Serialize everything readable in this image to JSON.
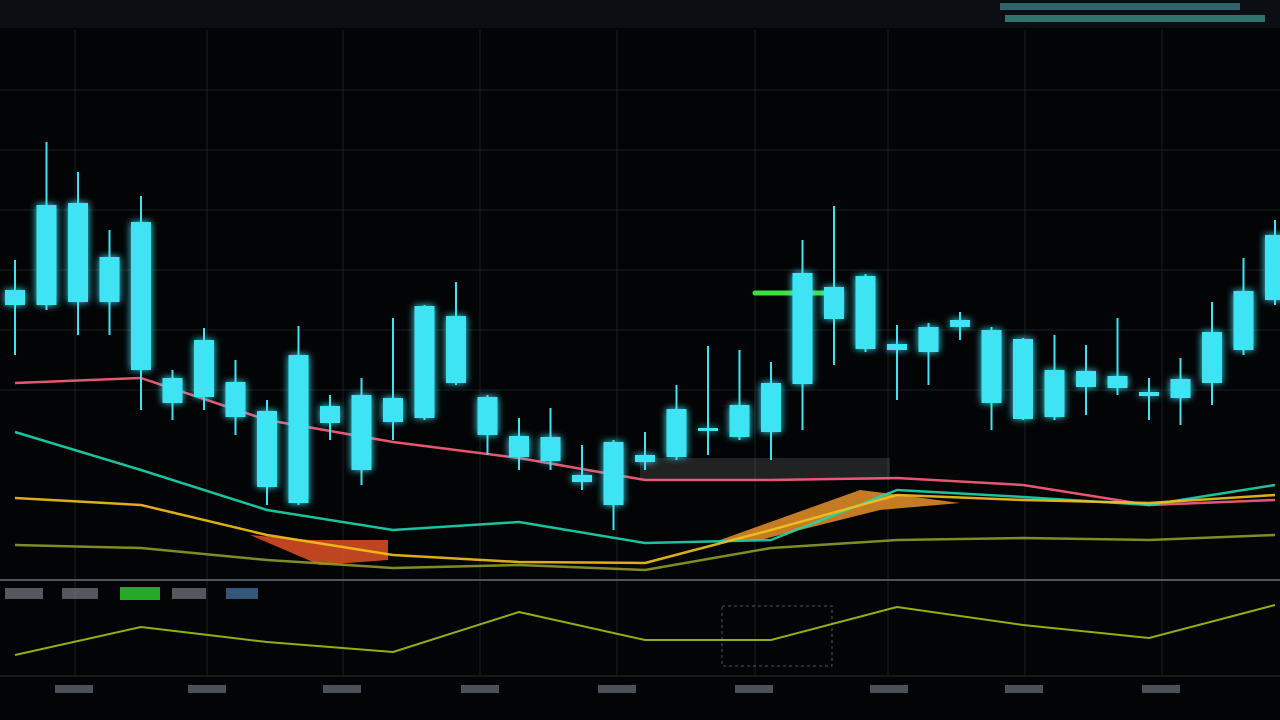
{
  "chart_data": [
    {
      "type": "candlestick",
      "color": "#3fe4f4",
      "ylim": [
        0,
        550
      ],
      "xlim": [
        0,
        40
      ],
      "open": [
        275,
        275,
        278,
        278,
        210,
        177,
        183,
        163,
        93,
        77,
        157,
        110,
        158,
        162,
        197,
        145,
        123,
        119,
        98,
        75,
        118,
        123,
        149,
        143,
        148,
        196,
        261,
        231,
        230,
        228,
        253,
        177,
        161,
        163,
        193,
        192,
        184,
        182,
        197,
        230,
        280
      ],
      "close": [
        290,
        375,
        377,
        323,
        358,
        202,
        240,
        198,
        169,
        225,
        174,
        185,
        182,
        274,
        264,
        183,
        144,
        143,
        105,
        138,
        125,
        171,
        152,
        175,
        197,
        307,
        293,
        304,
        236,
        253,
        260,
        250,
        241,
        210,
        209,
        204,
        188,
        201,
        248,
        289,
        345
      ],
      "high": [
        320,
        438,
        408,
        350,
        384,
        210,
        252,
        220,
        180,
        254,
        185,
        202,
        262,
        275,
        298,
        185,
        162,
        172,
        135,
        140,
        148,
        195,
        234,
        230,
        218,
        340,
        374,
        306,
        255,
        257,
        268,
        253,
        242,
        245,
        235,
        262,
        202,
        222,
        278,
        322,
        360
      ],
      "low": [
        225,
        270,
        245,
        245,
        170,
        160,
        170,
        145,
        75,
        75,
        140,
        95,
        140,
        160,
        195,
        125,
        110,
        110,
        90,
        50,
        110,
        120,
        125,
        140,
        120,
        150,
        215,
        228,
        180,
        195,
        240,
        150,
        160,
        160,
        165,
        185,
        160,
        155,
        175,
        225,
        275
      ],
      "series": [
        {
          "color": "#ff5f7e",
          "x": [
            0,
            4,
            8,
            12,
            16,
            20,
            24,
            28,
            32,
            36,
            40
          ],
          "values": [
            197,
            202,
            160,
            138,
            122,
            100,
            100,
            102,
            95,
            75,
            80
          ]
        },
        {
          "color": "#1fd6b0",
          "x": [
            0,
            4,
            8,
            12,
            16,
            20,
            24,
            28,
            32,
            36,
            40
          ],
          "values": [
            148,
            110,
            70,
            50,
            58,
            37,
            40,
            90,
            83,
            75,
            95
          ]
        },
        {
          "color": "#f4c21c",
          "x": [
            0,
            4,
            8,
            12,
            16,
            20,
            24,
            28,
            32,
            36,
            40
          ],
          "values": [
            82,
            75,
            45,
            25,
            18,
            17,
            50,
            85,
            80,
            77,
            85
          ]
        },
        {
          "color": "#8f9a2a",
          "x": [
            0,
            4,
            8,
            12,
            16,
            20,
            24,
            28,
            32,
            36,
            40
          ],
          "values": [
            35,
            32,
            20,
            12,
            15,
            10,
            32,
            40,
            42,
            40,
            45
          ]
        }
      ]
    },
    {
      "type": "line",
      "ylim": [
        0,
        90
      ],
      "xlim": [
        0,
        40
      ],
      "series": [
        {
          "color": "#9fc21a",
          "x": [
            0,
            4,
            8,
            12,
            16,
            20,
            24,
            28,
            32,
            36,
            40
          ],
          "values": [
            20,
            48,
            33,
            23,
            63,
            35,
            35,
            68,
            50,
            37,
            70
          ]
        }
      ]
    }
  ]
}
